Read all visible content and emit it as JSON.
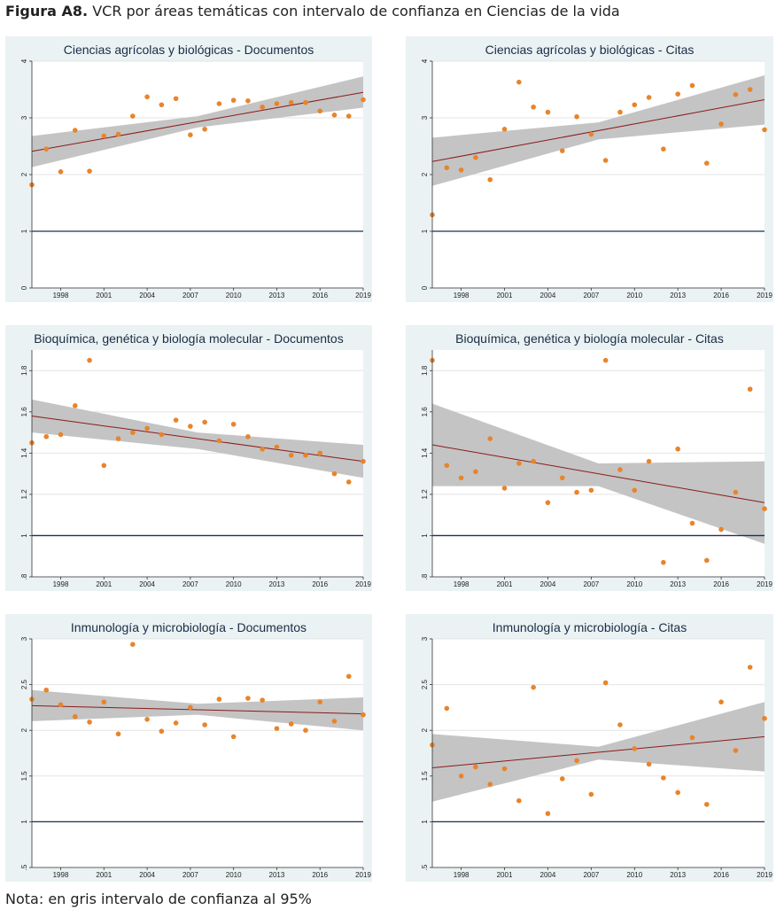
{
  "figure": {
    "label": "Figura A8.",
    "title": "VCR por áreas temáticas con intervalo de confianza en Ciencias de la vida",
    "note": "Nota: en gris intervalo de confianza al 95%"
  },
  "colors": {
    "points": "#e8842a",
    "trend": "#8b1a1a",
    "band": "#c4c4c4",
    "reference": "#1a3050",
    "panel_bg": "#eaf2f3"
  },
  "chart_data": [
    {
      "type": "scatter",
      "title": "Ciencias agrícolas y biológicas - Documentos",
      "xlim": [
        1996,
        2019
      ],
      "ylim": [
        0,
        4
      ],
      "x_ticks": [
        "1998",
        "2001",
        "2004",
        "2007",
        "2010",
        "2013",
        "2016",
        "2019"
      ],
      "y_ticks": [
        "0",
        "1",
        "2",
        "3",
        "4"
      ],
      "reference_line": 1,
      "trend": {
        "x": [
          1996,
          2019
        ],
        "y": [
          2.41,
          3.45
        ]
      },
      "ci": {
        "x": [
          1996,
          2007.5,
          2019
        ],
        "upper": [
          2.68,
          3.03,
          3.73
        ],
        "lower": [
          2.13,
          2.83,
          3.18
        ]
      },
      "x": [
        1996,
        1997,
        1998,
        1999,
        2000,
        2001,
        2002,
        2003,
        2004,
        2005,
        2006,
        2007,
        2008,
        2009,
        2010,
        2011,
        2012,
        2013,
        2014,
        2015,
        2016,
        2017,
        2018,
        2019
      ],
      "y": [
        1.82,
        2.45,
        2.05,
        2.78,
        2.06,
        2.68,
        2.71,
        3.03,
        3.37,
        3.23,
        3.34,
        2.7,
        2.8,
        3.25,
        3.31,
        3.3,
        3.19,
        3.25,
        3.27,
        3.27,
        3.12,
        3.05,
        3.03,
        3.32
      ]
    },
    {
      "type": "scatter",
      "title": "Ciencias agrícolas y biológicas - Citas",
      "xlim": [
        1996,
        2019
      ],
      "ylim": [
        0,
        4
      ],
      "x_ticks": [
        "1998",
        "2001",
        "2004",
        "2007",
        "2010",
        "2013",
        "2016",
        "2019"
      ],
      "y_ticks": [
        "0",
        "1",
        "2",
        "3",
        "4"
      ],
      "reference_line": 1,
      "trend": {
        "x": [
          1996,
          2019
        ],
        "y": [
          2.23,
          3.32
        ]
      },
      "ci": {
        "x": [
          1996,
          2007.5,
          2019
        ],
        "upper": [
          2.65,
          2.92,
          3.75
        ],
        "lower": [
          1.8,
          2.62,
          2.88
        ]
      },
      "x": [
        1996,
        1997,
        1998,
        1999,
        2000,
        2001,
        2002,
        2003,
        2004,
        2005,
        2006,
        2007,
        2008,
        2009,
        2010,
        2011,
        2012,
        2013,
        2014,
        2015,
        2016,
        2017,
        2018,
        2019
      ],
      "y": [
        1.29,
        2.12,
        2.08,
        2.3,
        1.91,
        2.8,
        3.63,
        3.19,
        3.1,
        2.42,
        3.02,
        2.71,
        2.25,
        3.1,
        3.23,
        3.36,
        2.45,
        3.42,
        3.57,
        2.2,
        2.89,
        3.41,
        3.5,
        2.79
      ]
    },
    {
      "type": "scatter",
      "title": "Bioquímica, genética y biología molecular - Documentos",
      "xlim": [
        1996,
        2019
      ],
      "ylim": [
        0.8,
        1.9
      ],
      "x_ticks": [
        "1998",
        "2001",
        "2004",
        "2007",
        "2010",
        "2013",
        "2016",
        "2019"
      ],
      "y_ticks": [
        ".8",
        "1",
        "1.2",
        "1.4",
        "1.6",
        "1.8"
      ],
      "reference_line": 1,
      "trend": {
        "x": [
          1996,
          2019
        ],
        "y": [
          1.58,
          1.36
        ]
      },
      "ci": {
        "x": [
          1996,
          2007.5,
          2019
        ],
        "upper": [
          1.66,
          1.5,
          1.44
        ],
        "lower": [
          1.5,
          1.42,
          1.28
        ]
      },
      "x": [
        1996,
        1997,
        1998,
        1999,
        2000,
        2001,
        2002,
        2003,
        2004,
        2005,
        2006,
        2007,
        2008,
        2009,
        2010,
        2011,
        2012,
        2013,
        2014,
        2015,
        2016,
        2017,
        2018,
        2019
      ],
      "y": [
        1.45,
        1.48,
        1.49,
        1.63,
        1.85,
        1.34,
        1.47,
        1.5,
        1.52,
        1.49,
        1.56,
        1.53,
        1.55,
        1.46,
        1.54,
        1.48,
        1.42,
        1.43,
        1.39,
        1.39,
        1.4,
        1.3,
        1.26,
        1.36
      ]
    },
    {
      "type": "scatter",
      "title": "Bioquímica, genética y biología molecular - Citas",
      "xlim": [
        1996,
        2019
      ],
      "ylim": [
        0.8,
        1.9
      ],
      "x_ticks": [
        "1998",
        "2001",
        "2004",
        "2007",
        "2010",
        "2013",
        "2016",
        "2019"
      ],
      "y_ticks": [
        ".8",
        "1",
        "1.2",
        "1.4",
        "1.6",
        "1.8"
      ],
      "reference_line": 1,
      "trend": {
        "x": [
          1996,
          2019
        ],
        "y": [
          1.44,
          1.16
        ]
      },
      "ci": {
        "x": [
          1996,
          2007.5,
          2019
        ],
        "upper": [
          1.64,
          1.35,
          1.36
        ],
        "lower": [
          1.24,
          1.24,
          0.96
        ]
      },
      "x": [
        1996,
        1997,
        1998,
        1999,
        2000,
        2001,
        2002,
        2003,
        2004,
        2005,
        2006,
        2007,
        2008,
        2009,
        2010,
        2011,
        2012,
        2013,
        2014,
        2015,
        2016,
        2017,
        2018,
        2019
      ],
      "y": [
        1.85,
        1.34,
        1.28,
        1.31,
        1.47,
        1.23,
        1.35,
        1.36,
        1.16,
        1.28,
        1.21,
        1.22,
        1.85,
        1.32,
        1.22,
        1.36,
        0.87,
        1.42,
        1.06,
        0.88,
        1.03,
        1.21,
        1.71,
        1.13
      ]
    },
    {
      "type": "scatter",
      "title": "Inmunología y microbiología - Documentos",
      "xlim": [
        1996,
        2019
      ],
      "ylim": [
        0.5,
        3
      ],
      "x_ticks": [
        "1998",
        "2001",
        "2004",
        "2007",
        "2010",
        "2013",
        "2016",
        "2019"
      ],
      "y_ticks": [
        ".5",
        "1",
        "1.5",
        "2",
        "2.5",
        "3"
      ],
      "reference_line": 1,
      "trend": {
        "x": [
          1996,
          2019
        ],
        "y": [
          2.27,
          2.18
        ]
      },
      "ci": {
        "x": [
          1996,
          2007.5,
          2019
        ],
        "upper": [
          2.44,
          2.29,
          2.36
        ],
        "lower": [
          2.1,
          2.17,
          2.0
        ]
      },
      "x": [
        1996,
        1997,
        1998,
        1999,
        2000,
        2001,
        2002,
        2003,
        2004,
        2005,
        2006,
        2007,
        2008,
        2009,
        2010,
        2011,
        2012,
        2013,
        2014,
        2015,
        2016,
        2017,
        2018,
        2019
      ],
      "y": [
        2.34,
        2.44,
        2.28,
        2.15,
        2.09,
        2.31,
        1.96,
        2.94,
        2.12,
        1.99,
        2.08,
        2.25,
        2.06,
        2.34,
        1.93,
        2.35,
        2.33,
        2.02,
        2.07,
        2.0,
        2.31,
        2.1,
        2.59,
        2.17
      ]
    },
    {
      "type": "scatter",
      "title": "Inmunología y microbiología - Citas",
      "xlim": [
        1996,
        2019
      ],
      "ylim": [
        0.5,
        3
      ],
      "x_ticks": [
        "1998",
        "2001",
        "2004",
        "2007",
        "2010",
        "2013",
        "2016",
        "2019"
      ],
      "y_ticks": [
        ".5",
        "1",
        "1.5",
        "2",
        "2.5",
        "3"
      ],
      "reference_line": 1,
      "trend": {
        "x": [
          1996,
          2019
        ],
        "y": [
          1.59,
          1.93
        ]
      },
      "ci": {
        "x": [
          1996,
          2007.5,
          2019
        ],
        "upper": [
          1.96,
          1.82,
          2.31
        ],
        "lower": [
          1.22,
          1.68,
          1.55
        ]
      },
      "x": [
        1996,
        1997,
        1998,
        1999,
        2000,
        2001,
        2002,
        2003,
        2004,
        2005,
        2006,
        2007,
        2008,
        2009,
        2010,
        2011,
        2012,
        2013,
        2014,
        2015,
        2016,
        2017,
        2018,
        2019
      ],
      "y": [
        1.84,
        2.24,
        1.5,
        1.6,
        1.41,
        1.58,
        1.23,
        2.47,
        1.09,
        1.47,
        1.67,
        1.3,
        2.52,
        2.06,
        1.8,
        1.63,
        1.48,
        1.32,
        1.92,
        1.19,
        2.31,
        1.78,
        2.69,
        2.13
      ]
    }
  ]
}
